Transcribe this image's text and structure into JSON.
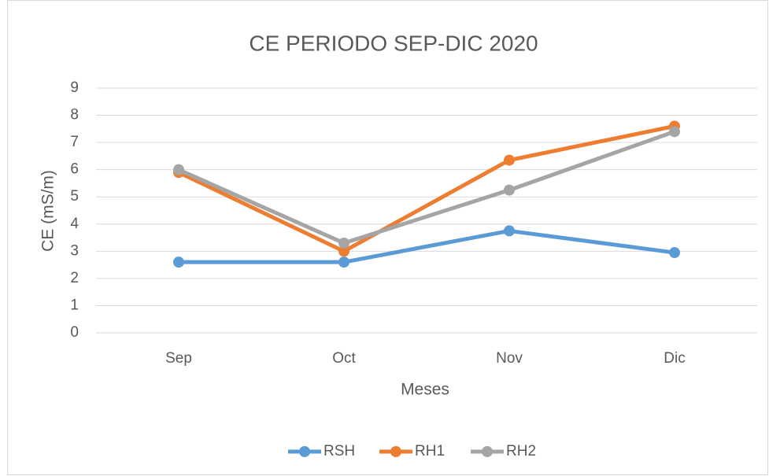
{
  "chart_data": {
    "type": "line",
    "title": "CE PERIODO SEP-DIC 2020",
    "x_label": "Meses",
    "y_label": "CE (mS/m)",
    "categories": [
      "Sep",
      "Oct",
      "Nov",
      "Dic"
    ],
    "series": [
      {
        "name": "RSH",
        "color": "#5b9bd5",
        "values": [
          2.6,
          2.6,
          3.75,
          2.95
        ]
      },
      {
        "name": "RH1",
        "color": "#ed7d31",
        "values": [
          5.9,
          3.0,
          6.35,
          7.6
        ]
      },
      {
        "name": "RH2",
        "color": "#a5a5a5",
        "values": [
          6.0,
          3.3,
          5.25,
          7.4
        ]
      }
    ],
    "ylim": [
      0,
      9
    ],
    "yticks": [
      0,
      1,
      2,
      3,
      4,
      5,
      6,
      7,
      8,
      9
    ],
    "grid": true,
    "legend": "bottom"
  }
}
